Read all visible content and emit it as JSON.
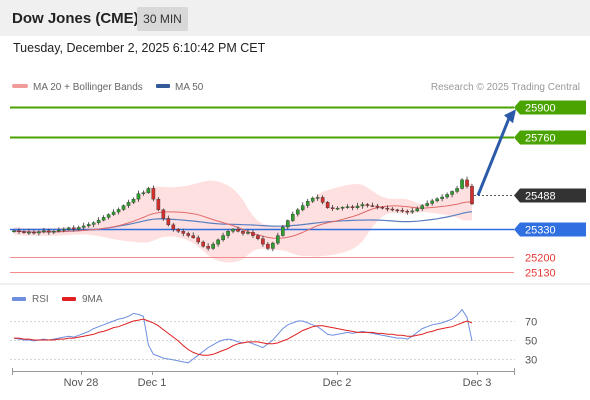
{
  "header": {
    "title": "Dow Jones (CME)",
    "timeframe": "30 MIN"
  },
  "timestamp": "Tuesday, December 2, 2025 6:10:42 PM CET",
  "legend": {
    "ma20": "MA 20 + Bollinger Bands",
    "ma50": "MA 50"
  },
  "copyright": "Research © 2025 Trading Central",
  "colors": {
    "up": "#2f9e2f",
    "down": "#d32f2f",
    "resistance": "#4aa300",
    "support": "#2f6fe0",
    "minor": "#e53935",
    "current": "#333333",
    "band": "#ffd6d6",
    "ma20": "#e06a6a",
    "ma50": "#5a7fc0",
    "arrow": "#2b5aa8",
    "rsi": "#6e8fe0",
    "rsi_ma": "#e02020"
  },
  "chart_data": [
    {
      "type": "candlestick",
      "x_ticks": [
        "Nov 28",
        "Dec 1",
        "Dec 2",
        "Dec 3"
      ],
      "levels": [
        {
          "value": 25900,
          "label": "25900",
          "kind": "resistance"
        },
        {
          "value": 25760,
          "label": "25760",
          "kind": "resistance"
        },
        {
          "value": 25488,
          "label": "25488",
          "kind": "current"
        },
        {
          "value": 25330,
          "label": "25330",
          "kind": "support"
        },
        {
          "value": 25200,
          "label": "25200",
          "kind": "minor"
        },
        {
          "value": 25130,
          "label": "25130",
          "kind": "minor"
        }
      ],
      "closes": [
        25322,
        25318,
        25314,
        25316,
        25312,
        25318,
        25322,
        25316,
        25320,
        25325,
        25330,
        25336,
        25330,
        25338,
        25345,
        25352,
        25360,
        25372,
        25385,
        25398,
        25410,
        25422,
        25440,
        25455,
        25470,
        25495,
        25500,
        25520,
        25470,
        25420,
        25380,
        25350,
        25330,
        25320,
        25310,
        25300,
        25290,
        25270,
        25250,
        25240,
        25260,
        25280,
        25300,
        25320,
        25330,
        25320,
        25310,
        25315,
        25300,
        25285,
        25260,
        25240,
        25265,
        25300,
        25340,
        25370,
        25400,
        25420,
        25440,
        25460,
        25475,
        25478,
        25455,
        25430,
        25425,
        25428,
        25432,
        25435,
        25430,
        25438,
        25445,
        25440,
        25438,
        25432,
        25428,
        25424,
        25420,
        25418,
        25414,
        25410,
        25415,
        25425,
        25440,
        25450,
        25462,
        25472,
        25480,
        25492,
        25506,
        25520,
        25560,
        25530,
        25448
      ]
    },
    {
      "type": "line",
      "title": "RSI",
      "legend": [
        "RSI",
        "9MA"
      ],
      "y_ticks": [
        70,
        50,
        30
      ],
      "series": [
        {
          "name": "RSI",
          "values": [
            52,
            51,
            50,
            50,
            49,
            50,
            51,
            50,
            51,
            52,
            53,
            54,
            53,
            55,
            57,
            59,
            62,
            64,
            66,
            68,
            70,
            72,
            73,
            75,
            78,
            77,
            75,
            45,
            35,
            33,
            31,
            30,
            29,
            28,
            27,
            26,
            30,
            34,
            38,
            42,
            45,
            48,
            50,
            51,
            50,
            48,
            47,
            48,
            46,
            44,
            42,
            46,
            50,
            56,
            62,
            66,
            68,
            70,
            70,
            68,
            66,
            64,
            60,
            56,
            55,
            56,
            57,
            58,
            57,
            58,
            59,
            58,
            57,
            56,
            55,
            54,
            53,
            52,
            52,
            51,
            54,
            58,
            62,
            64,
            66,
            67,
            68,
            70,
            72,
            76,
            82,
            74,
            49
          ]
        },
        {
          "name": "9MA",
          "values": [
            52,
            52,
            51,
            51,
            50,
            50,
            50,
            50,
            50,
            51,
            51,
            52,
            52,
            53,
            54,
            55,
            56,
            58,
            59,
            61,
            63,
            64,
            66,
            68,
            70,
            71,
            72,
            70,
            68,
            65,
            61,
            57,
            53,
            49,
            44,
            40,
            37,
            35,
            34,
            34,
            35,
            37,
            39,
            41,
            44,
            46,
            47,
            48,
            48,
            48,
            47,
            46,
            46,
            47,
            49,
            51,
            54,
            57,
            60,
            62,
            64,
            65,
            65,
            64,
            63,
            62,
            61,
            60,
            59,
            58,
            58,
            58,
            58,
            57,
            57,
            56,
            56,
            55,
            55,
            54,
            54,
            55,
            56,
            58,
            59,
            61,
            62,
            63,
            64,
            66,
            68,
            70,
            68
          ]
        }
      ]
    }
  ]
}
